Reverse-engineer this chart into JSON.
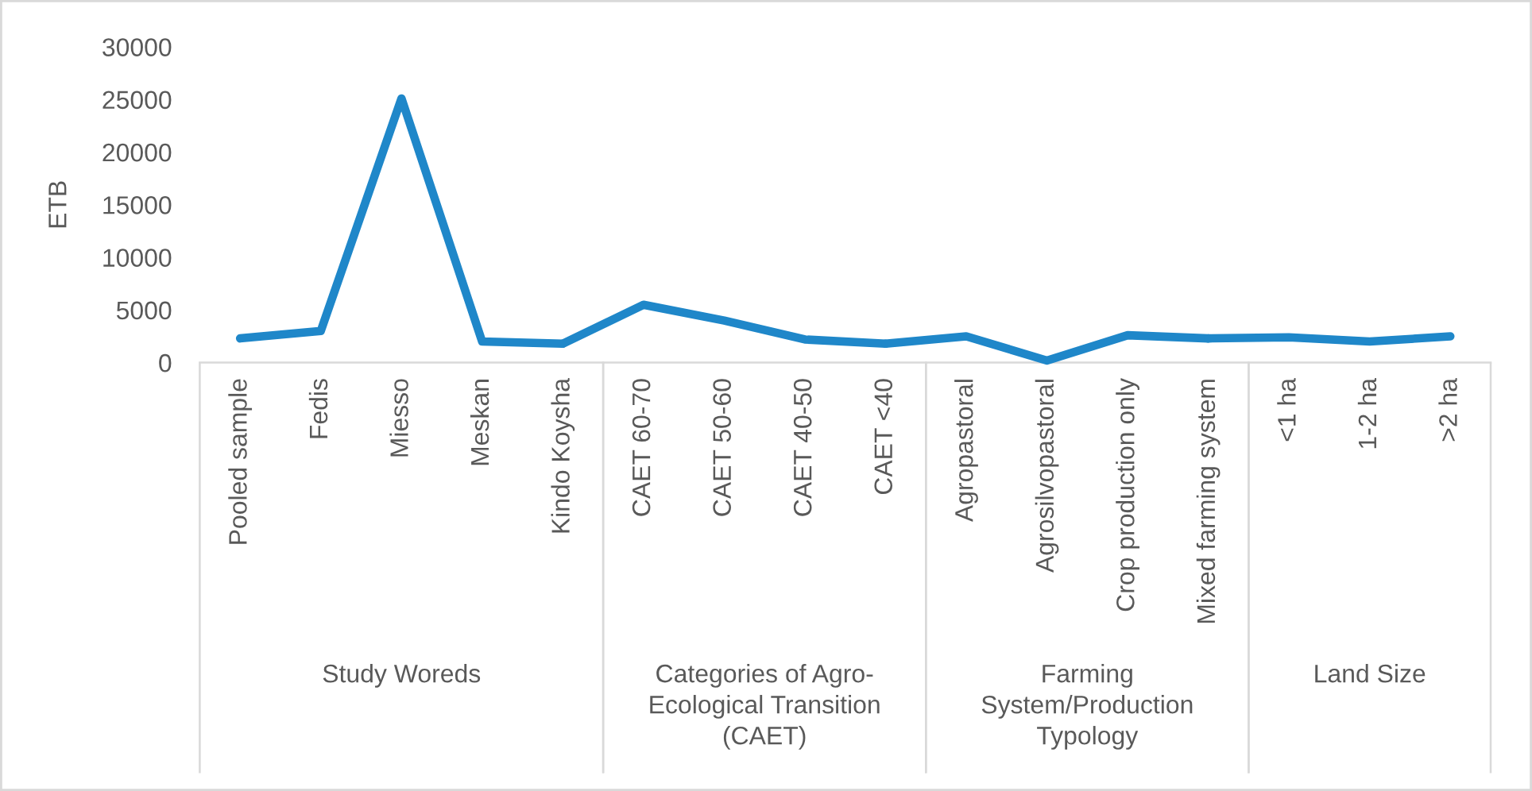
{
  "chart_data": [
    {
      "type": "line",
      "xlabel": "Study Woreds",
      "ylabel": "ETB",
      "categories": [
        "Pooled sample",
        "Fedis",
        "Miesso",
        "Meskan",
        "Kindo Koysha"
      ],
      "series": [
        {
          "color": "#1f87c9",
          "values": [
            2300,
            3000,
            25100,
            2000,
            1800
          ]
        }
      ],
      "ylim": [
        0,
        30000
      ],
      "yticks": [
        0,
        5000,
        10000,
        15000,
        20000,
        25000,
        30000
      ],
      "grid": false,
      "marker": "none",
      "line_style": "solid"
    },
    {
      "type": "line",
      "xlabel": "Categories of Agro-Ecological Transition (CAET)",
      "categories": [
        "CAET 60-70",
        "CAET 50-60",
        "CAET 40-50",
        "CAET <40"
      ],
      "series": [
        {
          "color": "#1f87c9",
          "values": [
            5500,
            4000,
            2200,
            1800
          ]
        }
      ],
      "ylim": [
        0,
        30000
      ],
      "tick_labels": "x",
      "grid": false,
      "marker": "none",
      "line_style": "solid"
    },
    {
      "type": "line",
      "xlabel": "Farming System/Production Typology",
      "categories": [
        "Agropastoral",
        "Agrosilvopastoral",
        "Crop production only",
        "Mixed farming system"
      ],
      "series": [
        {
          "color": "#1f87c9",
          "values": [
            2500,
            200,
            2600,
            2300
          ]
        }
      ],
      "ylim": [
        0,
        30000
      ],
      "tick_labels": "x",
      "grid": false,
      "marker": "none",
      "line_style": "solid"
    },
    {
      "type": "line",
      "xlabel": "Land Size",
      "categories": [
        "<1 ha",
        "1-2 ha",
        ">2 ha"
      ],
      "series": [
        {
          "color": "#1f87c9",
          "values": [
            2400,
            2000,
            2500
          ]
        }
      ],
      "ylim": [
        0,
        30000
      ],
      "tick_labels": "x",
      "grid": false,
      "marker": "none",
      "line_style": "solid"
    }
  ]
}
